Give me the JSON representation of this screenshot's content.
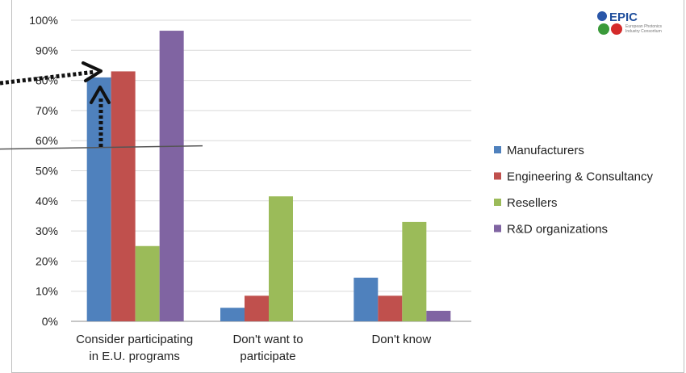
{
  "chart_data": {
    "type": "bar",
    "categories": [
      [
        "Consider participating",
        "in E.U. programs"
      ],
      [
        "Don't want to",
        "participate"
      ],
      [
        "Don't know"
      ]
    ],
    "series": [
      {
        "name": "Manufacturers",
        "color": "#4f81bd",
        "values": [
          81,
          4.5,
          14.5
        ]
      },
      {
        "name": "Engineering & Consultancy",
        "color": "#c0504d",
        "values": [
          83,
          8.5,
          8.5
        ]
      },
      {
        "name": "Resellers",
        "color": "#9bbb59",
        "values": [
          25,
          41.5,
          33
        ]
      },
      {
        "name": "R&D organizations",
        "color": "#8064a2",
        "values": [
          96.5,
          0,
          3.5
        ]
      }
    ],
    "yticks": [
      "0%",
      "10%",
      "20%",
      "30%",
      "40%",
      "50%",
      "60%",
      "70%",
      "80%",
      "90%",
      "100%"
    ],
    "ylim": [
      0,
      100
    ],
    "grid": true,
    "legend": "right"
  },
  "logo": {
    "name": "EPIC",
    "subtitle": "European Photonics Industry Consortium"
  },
  "annotations": {
    "reference_line_value": 58,
    "arrow_icon": "dotted-arrow-icon"
  }
}
